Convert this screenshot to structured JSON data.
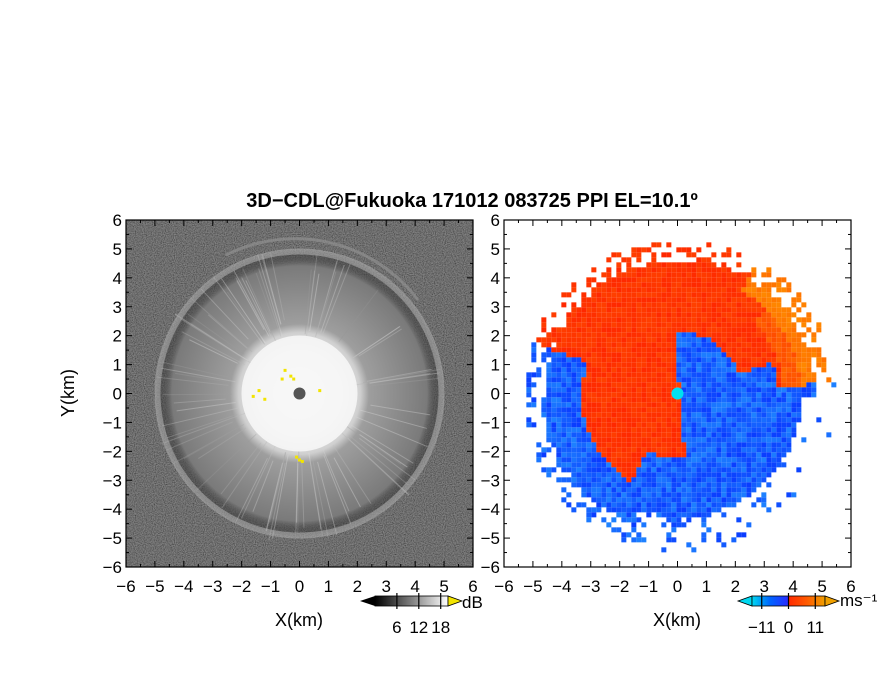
{
  "title": "3D−CDL@Fukuoka 171012 083725 PPI EL=10.1º",
  "chart_data": [
    {
      "type": "heatmap",
      "panel": "left",
      "quantity": "reflectivity",
      "xlabel": "X(km)",
      "ylabel": "Y(km)",
      "xlim": [
        -6,
        6
      ],
      "ylim": [
        -6,
        6
      ],
      "xticks": [
        "−6",
        "−5",
        "−4",
        "−3",
        "−2",
        "−1",
        "0",
        "1",
        "2",
        "3",
        "4",
        "5",
        "6"
      ],
      "yticks": [
        "6",
        "5",
        "4",
        "3",
        "2",
        "1",
        "0",
        "−1",
        "−2",
        "−3",
        "−4",
        "−5",
        "−6"
      ],
      "colormap": "grayscale",
      "colorbar": {
        "unit": "dB",
        "ticks": [
          6,
          12,
          18
        ],
        "tick_labels": [
          "6",
          "12",
          "18"
        ],
        "range": [
          0,
          20
        ],
        "over_color": "#f2e400"
      },
      "features": {
        "bright_core_radius_km": 2.2,
        "echo_ring_radius_km": 4.9,
        "outer_arc_radius_km": 5.3
      }
    },
    {
      "type": "heatmap",
      "panel": "right",
      "quantity": "doppler velocity",
      "xlabel": "X(km)",
      "xlim": [
        -6,
        6
      ],
      "ylim": [
        -6,
        6
      ],
      "xticks": [
        "−6",
        "−5",
        "−4",
        "−3",
        "−2",
        "−1",
        "0",
        "1",
        "2",
        "3",
        "4",
        "5",
        "6"
      ],
      "yticks": [
        "6",
        "5",
        "4",
        "3",
        "2",
        "1",
        "0",
        "−1",
        "−2",
        "−3",
        "−4",
        "−5",
        "−6"
      ],
      "colormap": "diverging blue-red",
      "colorbar": {
        "unit": "ms⁻¹",
        "ticks": [
          -11,
          0,
          11
        ],
        "tick_labels": [
          "−11",
          "0",
          "11"
        ],
        "range": [
          -15,
          15
        ],
        "under_color": "#00d8f0",
        "over_color": "#f0a000"
      },
      "features": {
        "max_range_km": 5.4,
        "receding_color": "#ff3b00",
        "approaching_color": "#1a50ff"
      }
    }
  ]
}
